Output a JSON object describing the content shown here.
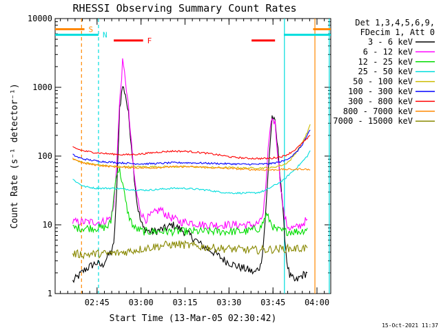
{
  "chart_data": {
    "type": "line",
    "title": "RHESSI Observing Summary Count Rates",
    "xlabel": "Start Time (13-Mar-05 02:30:42)",
    "ylabel": "Count Rate (s⁻¹ detector⁻¹)",
    "yscale": "log",
    "ylim": [
      1,
      10000
    ],
    "xlim_minutes": [
      0,
      94
    ],
    "x_ticks": [
      {
        "label": "02:45",
        "minute": 14.3
      },
      {
        "label": "03:00",
        "minute": 29.3
      },
      {
        "label": "03:15",
        "minute": 44.3
      },
      {
        "label": "03:30",
        "minute": 59.3
      },
      {
        "label": "03:45",
        "minute": 74.3
      },
      {
        "label": "04:00",
        "minute": 89.3
      }
    ],
    "y_ticks": [
      {
        "label": "1",
        "value": 1
      },
      {
        "label": "10",
        "value": 10
      },
      {
        "label": "100",
        "value": 100
      },
      {
        "label": "1000",
        "value": 1000
      },
      {
        "label": "10000",
        "value": 10000
      }
    ],
    "legend_header": [
      "Det 1,3,4,5,6,9,",
      "FDecim 1, Att 0"
    ],
    "legend_position": "top-right",
    "series": [
      {
        "name": "3 - 6 keV",
        "color": "#000000",
        "points": [
          [
            6,
            1.5
          ],
          [
            8,
            1.8
          ],
          [
            10,
            2.2
          ],
          [
            12,
            2.5
          ],
          [
            14,
            2.8
          ],
          [
            16,
            2.5
          ],
          [
            17,
            3
          ],
          [
            18,
            3.5
          ],
          [
            19,
            4
          ],
          [
            20,
            5
          ],
          [
            21,
            30
          ],
          [
            22,
            500
          ],
          [
            23,
            1050
          ],
          [
            24,
            800
          ],
          [
            25,
            400
          ],
          [
            26,
            150
          ],
          [
            27,
            50
          ],
          [
            28,
            20
          ],
          [
            29,
            12
          ],
          [
            30,
            9
          ],
          [
            32,
            8
          ],
          [
            34,
            8
          ],
          [
            36,
            8.5
          ],
          [
            38,
            9
          ],
          [
            40,
            10
          ],
          [
            42,
            9
          ],
          [
            44,
            8
          ],
          [
            46,
            7
          ],
          [
            48,
            6
          ],
          [
            50,
            5
          ],
          [
            54,
            4
          ],
          [
            58,
            3
          ],
          [
            62,
            2.5
          ],
          [
            66,
            2.2
          ],
          [
            68,
            2
          ],
          [
            70,
            2.5
          ],
          [
            71,
            5
          ],
          [
            72,
            20
          ],
          [
            73,
            100
          ],
          [
            74,
            380
          ],
          [
            75,
            300
          ],
          [
            76,
            120
          ],
          [
            77,
            40
          ],
          [
            78,
            10
          ],
          [
            79,
            3
          ],
          [
            80,
            1.8
          ],
          [
            82,
            1.5
          ],
          [
            84,
            1.8
          ],
          [
            86,
            2
          ]
        ]
      },
      {
        "name": "6 - 12 keV",
        "color": "#ff00ff",
        "points": [
          [
            6,
            11
          ],
          [
            10,
            11
          ],
          [
            14,
            11
          ],
          [
            16,
            11
          ],
          [
            18,
            12
          ],
          [
            19,
            13
          ],
          [
            20,
            18
          ],
          [
            21,
            80
          ],
          [
            22,
            600
          ],
          [
            23,
            2300
          ],
          [
            24,
            1300
          ],
          [
            25,
            500
          ],
          [
            26,
            150
          ],
          [
            27,
            50
          ],
          [
            28,
            25
          ],
          [
            29,
            17
          ],
          [
            30,
            13
          ],
          [
            31,
            12
          ],
          [
            33,
            14
          ],
          [
            35,
            16
          ],
          [
            36,
            17
          ],
          [
            37,
            15
          ],
          [
            39,
            13
          ],
          [
            41,
            12
          ],
          [
            43,
            11
          ],
          [
            46,
            11
          ],
          [
            50,
            10
          ],
          [
            55,
            10
          ],
          [
            60,
            10
          ],
          [
            65,
            10
          ],
          [
            68,
            10
          ],
          [
            70,
            11
          ],
          [
            71,
            15
          ],
          [
            72,
            40
          ],
          [
            73,
            200
          ],
          [
            74,
            370
          ],
          [
            75,
            300
          ],
          [
            76,
            100
          ],
          [
            77,
            35
          ],
          [
            78,
            15
          ],
          [
            79,
            10
          ],
          [
            80,
            9
          ],
          [
            82,
            9
          ],
          [
            84,
            10
          ],
          [
            86,
            12
          ]
        ]
      },
      {
        "name": "12 - 25 keV",
        "color": "#00dd00",
        "points": [
          [
            6,
            9
          ],
          [
            10,
            9
          ],
          [
            14,
            9
          ],
          [
            16,
            9
          ],
          [
            18,
            9.5
          ],
          [
            19,
            11
          ],
          [
            20,
            25
          ],
          [
            21,
            60
          ],
          [
            22,
            62
          ],
          [
            23,
            40
          ],
          [
            24,
            22
          ],
          [
            25,
            14
          ],
          [
            26,
            11
          ],
          [
            27,
            9
          ],
          [
            30,
            8
          ],
          [
            35,
            8
          ],
          [
            40,
            8
          ],
          [
            45,
            8
          ],
          [
            50,
            8
          ],
          [
            55,
            8
          ],
          [
            60,
            8
          ],
          [
            65,
            8
          ],
          [
            70,
            9
          ],
          [
            71,
            11
          ],
          [
            72,
            14
          ],
          [
            73,
            12
          ],
          [
            74,
            10
          ],
          [
            75,
            8.5
          ],
          [
            78,
            8
          ],
          [
            82,
            8
          ],
          [
            84,
            8
          ],
          [
            86,
            9
          ]
        ]
      },
      {
        "name": "25 - 50 keV",
        "color": "#00dddd",
        "points": [
          [
            6,
            46
          ],
          [
            8,
            40
          ],
          [
            10,
            36
          ],
          [
            12,
            35
          ],
          [
            14,
            34
          ],
          [
            16,
            34
          ],
          [
            18,
            34
          ],
          [
            20,
            34
          ],
          [
            24,
            33
          ],
          [
            28,
            32
          ],
          [
            32,
            32
          ],
          [
            36,
            33
          ],
          [
            40,
            34
          ],
          [
            44,
            34
          ],
          [
            48,
            33
          ],
          [
            52,
            32
          ],
          [
            56,
            30
          ],
          [
            60,
            29
          ],
          [
            64,
            29
          ],
          [
            66,
            29
          ],
          [
            68,
            29
          ],
          [
            70,
            30
          ],
          [
            72,
            32
          ],
          [
            74,
            36
          ],
          [
            76,
            40
          ],
          [
            78,
            45
          ],
          [
            80,
            55
          ],
          [
            82,
            65
          ],
          [
            84,
            80
          ],
          [
            86,
            100
          ],
          [
            87,
            120
          ]
        ]
      },
      {
        "name": "50 - 100 keV",
        "color": "#ccbb00",
        "points": [
          [
            6,
            90
          ],
          [
            10,
            80
          ],
          [
            14,
            75
          ],
          [
            18,
            72
          ],
          [
            22,
            70
          ],
          [
            26,
            70
          ],
          [
            30,
            70
          ],
          [
            35,
            70
          ],
          [
            40,
            70
          ],
          [
            45,
            70
          ],
          [
            50,
            69
          ],
          [
            55,
            68
          ],
          [
            60,
            68
          ],
          [
            65,
            67
          ],
          [
            70,
            67
          ],
          [
            74,
            68
          ],
          [
            78,
            75
          ],
          [
            80,
            85
          ],
          [
            82,
            110
          ],
          [
            84,
            150
          ],
          [
            86,
            220
          ],
          [
            87,
            290
          ]
        ]
      },
      {
        "name": "100 - 300 keV",
        "color": "#0000ff",
        "points": [
          [
            6,
            105
          ],
          [
            8,
            95
          ],
          [
            10,
            90
          ],
          [
            14,
            85
          ],
          [
            18,
            82
          ],
          [
            22,
            80
          ],
          [
            26,
            78
          ],
          [
            30,
            77
          ],
          [
            35,
            78
          ],
          [
            40,
            80
          ],
          [
            45,
            80
          ],
          [
            50,
            79
          ],
          [
            55,
            78
          ],
          [
            60,
            77
          ],
          [
            65,
            76
          ],
          [
            70,
            76
          ],
          [
            74,
            78
          ],
          [
            78,
            85
          ],
          [
            80,
            95
          ],
          [
            82,
            110
          ],
          [
            84,
            140
          ],
          [
            86,
            200
          ],
          [
            87,
            240
          ]
        ]
      },
      {
        "name": "300 - 800 keV",
        "color": "#ff0000",
        "points": [
          [
            6,
            135
          ],
          [
            8,
            125
          ],
          [
            10,
            118
          ],
          [
            14,
            112
          ],
          [
            18,
            108
          ],
          [
            22,
            105
          ],
          [
            26,
            105
          ],
          [
            30,
            108
          ],
          [
            35,
            114
          ],
          [
            40,
            118
          ],
          [
            45,
            117
          ],
          [
            50,
            112
          ],
          [
            55,
            105
          ],
          [
            60,
            97
          ],
          [
            65,
            93
          ],
          [
            70,
            92
          ],
          [
            74,
            93
          ],
          [
            78,
            100
          ],
          [
            80,
            110
          ],
          [
            82,
            125
          ],
          [
            84,
            150
          ],
          [
            86,
            180
          ],
          [
            87,
            200
          ]
        ]
      },
      {
        "name": "800 - 7000 keV",
        "color": "#ff8800",
        "points": [
          [
            6,
            92
          ],
          [
            8,
            85
          ],
          [
            10,
            78
          ],
          [
            14,
            74
          ],
          [
            18,
            71
          ],
          [
            22,
            69
          ],
          [
            26,
            68
          ],
          [
            30,
            67
          ],
          [
            35,
            68
          ],
          [
            40,
            70
          ],
          [
            45,
            70
          ],
          [
            50,
            69
          ],
          [
            55,
            67
          ],
          [
            60,
            66
          ],
          [
            65,
            64
          ],
          [
            70,
            63
          ],
          [
            74,
            63
          ],
          [
            78,
            64
          ],
          [
            80,
            64
          ],
          [
            82,
            64
          ],
          [
            84,
            65
          ],
          [
            86,
            64
          ],
          [
            87,
            63
          ]
        ]
      },
      {
        "name": "7000 - 15000 keV",
        "color": "#888800",
        "points": [
          [
            6,
            3.8
          ],
          [
            10,
            3.7
          ],
          [
            14,
            3.8
          ],
          [
            18,
            3.8
          ],
          [
            22,
            3.9
          ],
          [
            26,
            4.2
          ],
          [
            30,
            4.5
          ],
          [
            34,
            4.8
          ],
          [
            38,
            5.1
          ],
          [
            42,
            5.2
          ],
          [
            46,
            5
          ],
          [
            50,
            4.8
          ],
          [
            54,
            4.6
          ],
          [
            58,
            4.5
          ],
          [
            62,
            4.4
          ],
          [
            66,
            4.3
          ],
          [
            70,
            4.3
          ],
          [
            74,
            4.4
          ],
          [
            78,
            4.5
          ],
          [
            82,
            4.5
          ],
          [
            86,
            4.6
          ]
        ]
      }
    ],
    "flag_bars": [
      {
        "label": "S",
        "color": "#ff8800",
        "y": 7000,
        "x_ranges": [
          [
            0,
            10
          ],
          [
            88,
            94
          ]
        ]
      },
      {
        "label": "N",
        "color": "#00dddd",
        "y": 5800,
        "x_ranges": [
          [
            0,
            14.8
          ],
          [
            78,
            94
          ]
        ]
      },
      {
        "label": "F",
        "color": "#ff0000",
        "y": 4800,
        "x_ranges": [
          [
            20,
            30
          ],
          [
            67,
            75
          ]
        ]
      }
    ],
    "vertical_lines": [
      {
        "minute": 9.0,
        "color": "#ff8800",
        "style": "dashed"
      },
      {
        "minute": 14.8,
        "color": "#00dddd",
        "style": "dashed"
      },
      {
        "minute": 78.2,
        "color": "#00dddd",
        "style": "solid"
      },
      {
        "minute": 88.6,
        "color": "#ff8800",
        "style": "solid"
      },
      {
        "minute": 93.5,
        "color": "#00dddd",
        "style": "solid"
      }
    ],
    "footer_text": "15-Oct-2021 11:37"
  }
}
